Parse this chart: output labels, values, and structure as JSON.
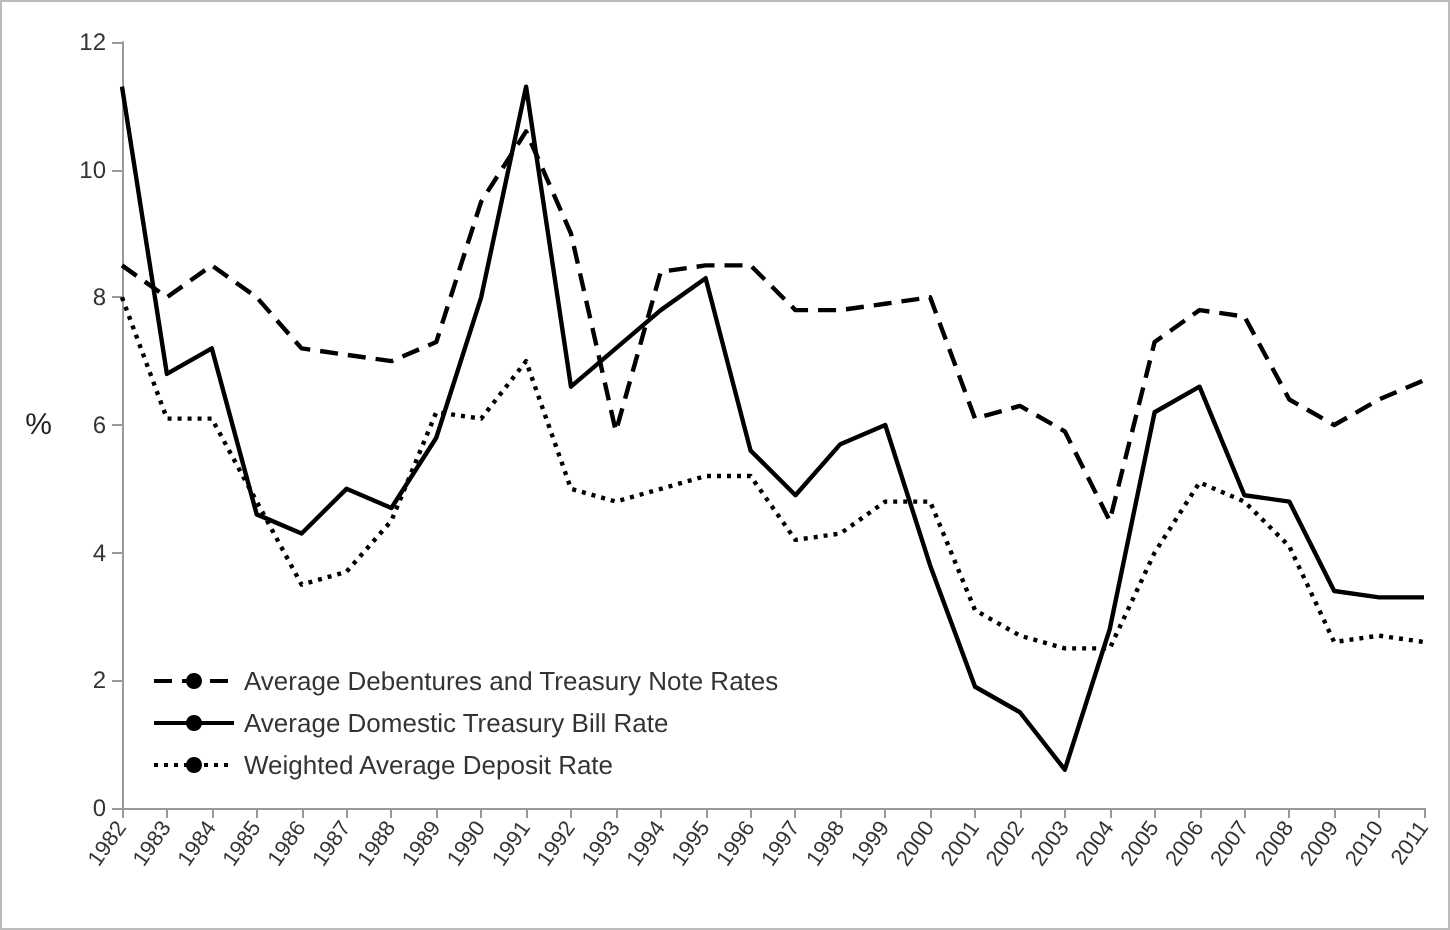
{
  "chart_data": {
    "type": "line",
    "ylabel": "%",
    "categories": [
      "1982",
      "1983",
      "1984",
      "1985",
      "1986",
      "1987",
      "1988",
      "1989",
      "1990",
      "1991",
      "1992",
      "1993",
      "1994",
      "1995",
      "1996",
      "1997",
      "1998",
      "1999",
      "2000",
      "2001",
      "2002",
      "2003",
      "2004",
      "2005",
      "2006",
      "2007",
      "2008",
      "2009",
      "2010",
      "2011"
    ],
    "series": [
      {
        "name": "Average Debentures and Treasury Note Rates",
        "color": "#000000",
        "line_style": "dashed",
        "values": [
          8.5,
          8.0,
          8.5,
          8.0,
          7.2,
          7.1,
          7.0,
          7.3,
          9.5,
          10.6,
          9.0,
          5.9,
          8.4,
          8.5,
          8.5,
          7.8,
          7.8,
          7.9,
          8.0,
          6.1,
          6.3,
          5.9,
          4.5,
          7.3,
          7.8,
          7.7,
          6.4,
          6.0,
          6.4,
          6.7
        ]
      },
      {
        "name": "Average Domestic Treasury Bill Rate",
        "color": "#000000",
        "line_style": "solid",
        "values": [
          11.3,
          6.8,
          7.2,
          4.6,
          4.3,
          5.0,
          4.7,
          5.8,
          8.0,
          11.3,
          6.6,
          7.2,
          7.8,
          8.3,
          5.6,
          4.9,
          5.7,
          6.0,
          3.8,
          1.9,
          1.5,
          0.6,
          2.8,
          6.2,
          6.6,
          4.9,
          4.8,
          3.4,
          3.3,
          3.3
        ]
      },
      {
        "name": "Weighted Average Deposit Rate",
        "color": "#000000",
        "line_style": "dotted",
        "values": [
          8.0,
          6.1,
          6.1,
          4.8,
          3.5,
          3.7,
          4.5,
          6.2,
          6.1,
          7.0,
          5.0,
          4.8,
          5.0,
          5.2,
          5.2,
          4.2,
          4.3,
          4.8,
          4.8,
          3.1,
          2.7,
          2.5,
          2.5,
          4.0,
          5.1,
          4.8,
          4.1,
          2.6,
          2.7,
          2.6
        ]
      }
    ],
    "ylim": [
      0,
      12
    ],
    "yticks": [
      0,
      2,
      4,
      6,
      8,
      10,
      12
    ],
    "grid": false,
    "legend": "bottom left",
    "marker": "none"
  }
}
